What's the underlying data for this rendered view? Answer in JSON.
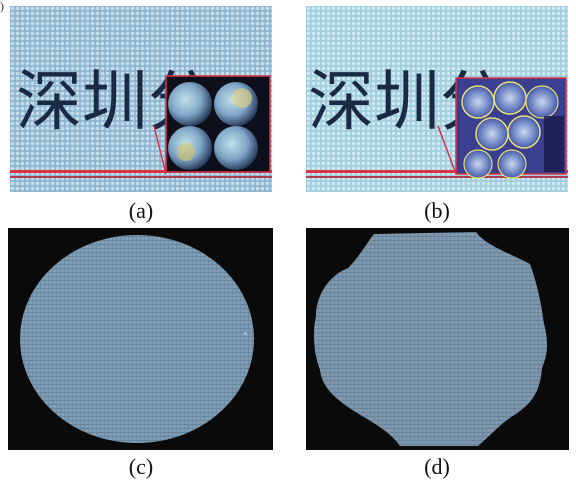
{
  "figure": {
    "panels": [
      {
        "id": "a",
        "caption": "(a)",
        "chinese_text": "深圳分",
        "style": "microlens-photo"
      },
      {
        "id": "b",
        "caption": "(b)",
        "chinese_text": "深圳分",
        "style": "microlens-photo-defect"
      },
      {
        "id": "c",
        "caption": "(c)",
        "style": "circular-array"
      },
      {
        "id": "d",
        "caption": "(d)",
        "style": "deformed-array"
      }
    ],
    "colors": {
      "photo_bg_a": "#9fc4dc",
      "photo_bg_b": "#a9d3e2",
      "text_dark": "#1a2a44",
      "inset_border": "#d63447",
      "array_fill": "#7f9eb6",
      "array_bg": "#0a0a0a",
      "grid_line": "#5f7d94"
    }
  }
}
